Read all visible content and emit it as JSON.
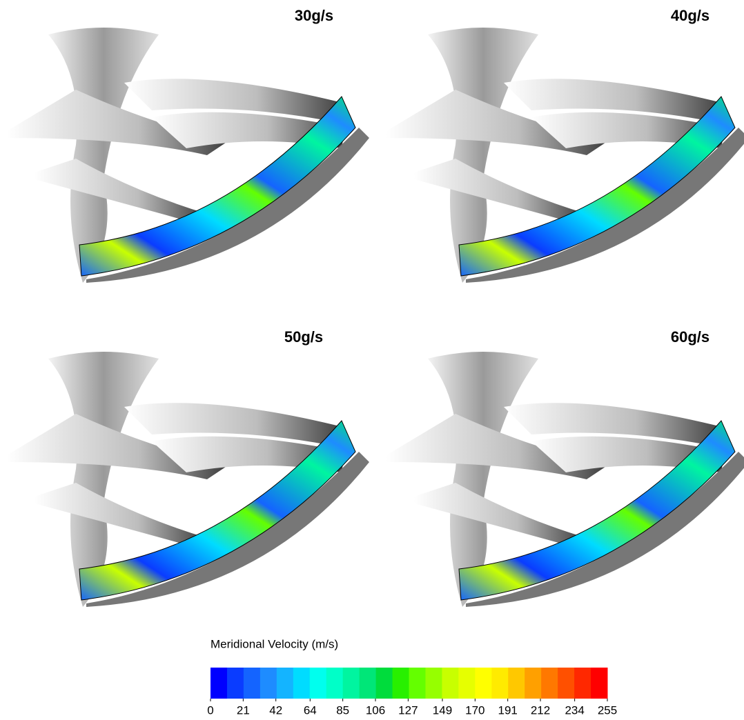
{
  "panels": [
    {
      "label": "30g/s"
    },
    {
      "label": "40g/s"
    },
    {
      "label": "50g/s"
    },
    {
      "label": "60g/s"
    }
  ],
  "colorbar": {
    "title": "Meridional Velocity (m/s)",
    "lim": [
      0,
      255
    ],
    "ticks": [
      0,
      21,
      42,
      64,
      85,
      106,
      127,
      149,
      170,
      191,
      212,
      234,
      255
    ],
    "band_colors": [
      "#0000ff",
      "#0a3cff",
      "#1464ff",
      "#1e8cff",
      "#14b4ff",
      "#00dcff",
      "#00ffee",
      "#00ffc8",
      "#00f5a0",
      "#00e678",
      "#00dc3c",
      "#28f000",
      "#64ff00",
      "#96ff00",
      "#c8ff00",
      "#e6ff00",
      "#ffff00",
      "#ffeb00",
      "#ffc800",
      "#ffa000",
      "#ff7800",
      "#ff5000",
      "#ff2800",
      "#ff0000"
    ]
  }
}
